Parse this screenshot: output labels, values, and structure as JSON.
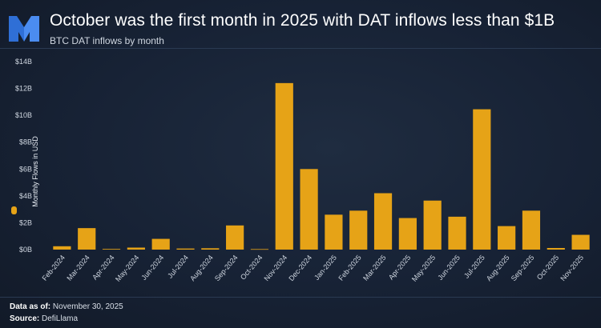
{
  "header": {
    "title": "October was the first month in 2025 with DAT inflows less than $1B",
    "subtitle": "BTC DAT inflows by month"
  },
  "footer": {
    "data_as_of_label": "Data as of:",
    "data_as_of_value": "November 30, 2025",
    "source_label": "Source:",
    "source_value": "DefiLlama"
  },
  "colors": {
    "bar": "#e6a317",
    "background": "#172235",
    "logo": "#2f6fd6"
  },
  "chart_data": {
    "type": "bar",
    "title": "October was the first month in 2025 with DAT inflows less than $1B",
    "subtitle": "BTC DAT inflows by month",
    "ylabel": "Monthly Flows in USD",
    "xlabel": "",
    "ylim": [
      0,
      14
    ],
    "yunit": "billion USD",
    "yticks": [
      "$0B",
      "$2B",
      "$4B",
      "$6B",
      "$8B",
      "$10B",
      "$12B",
      "$14B"
    ],
    "legend": "left",
    "grid": false,
    "categories": [
      "Feb-2024",
      "Mar-2024",
      "Apr-2024",
      "May-2024",
      "Jun-2024",
      "Jul-2024",
      "Aug-2024",
      "Sep-2024",
      "Oct-2024",
      "Nov-2024",
      "Dec-2024",
      "Jan-2025",
      "Feb-2025",
      "Mar-2025",
      "Apr-2025",
      "May-2025",
      "Jun-2025",
      "Jul-2025",
      "Aug-2025",
      "Sep-2025",
      "Oct-2025",
      "Nov-2025"
    ],
    "values": [
      0.25,
      1.6,
      0.05,
      0.15,
      0.8,
      0.08,
      0.1,
      1.8,
      0.04,
      12.4,
      6.0,
      2.6,
      2.9,
      4.2,
      2.35,
      3.65,
      2.45,
      10.45,
      1.75,
      2.9,
      0.12,
      1.1
    ]
  }
}
